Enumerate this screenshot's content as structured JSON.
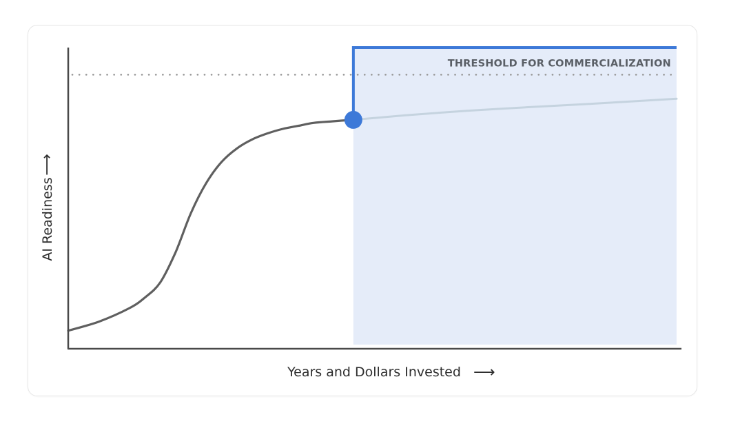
{
  "chart_data": {
    "type": "line",
    "title": "",
    "xlabel": "Years and Dollars Invested",
    "ylabel": "AI Readiness",
    "x_arrow": "⟶",
    "y_arrow": "⟶",
    "ylim": [
      0,
      100
    ],
    "xlim": [
      0,
      100
    ],
    "grid": false,
    "threshold": {
      "label": "THRESHOLD FOR COMMERCIALIZATION",
      "value": 91
    },
    "current_point": {
      "x": 46.5,
      "y": 76
    },
    "highlight_region": {
      "x_start": 46.5,
      "x_end": 99.2
    },
    "series": [
      {
        "role": "past",
        "x": [
          0,
          5,
          10,
          12.5,
          15,
          17.5,
          20,
          22.5,
          25,
          27.5,
          30,
          32.5,
          35,
          37.5,
          40,
          43,
          46.5
        ],
        "values": [
          6,
          9,
          13.5,
          17,
          22,
          32,
          45,
          55,
          62,
          66.5,
          69.5,
          71.5,
          73,
          74,
          75,
          75.5,
          76
        ]
      },
      {
        "role": "projection",
        "x": [
          46.5,
          55,
          65,
          75,
          85,
          99.2
        ],
        "values": [
          76,
          77.5,
          79,
          80.2,
          81.3,
          83
        ]
      }
    ],
    "colors": {
      "past_line": "#5f5f5f",
      "projection_line": "#c5d3df",
      "highlight_fill": "#e5ecf9",
      "step_line": "#3d79d8",
      "point": "#3d79d8",
      "threshold_line": "#9a9a9a",
      "axis": "#4a4a4a"
    }
  }
}
